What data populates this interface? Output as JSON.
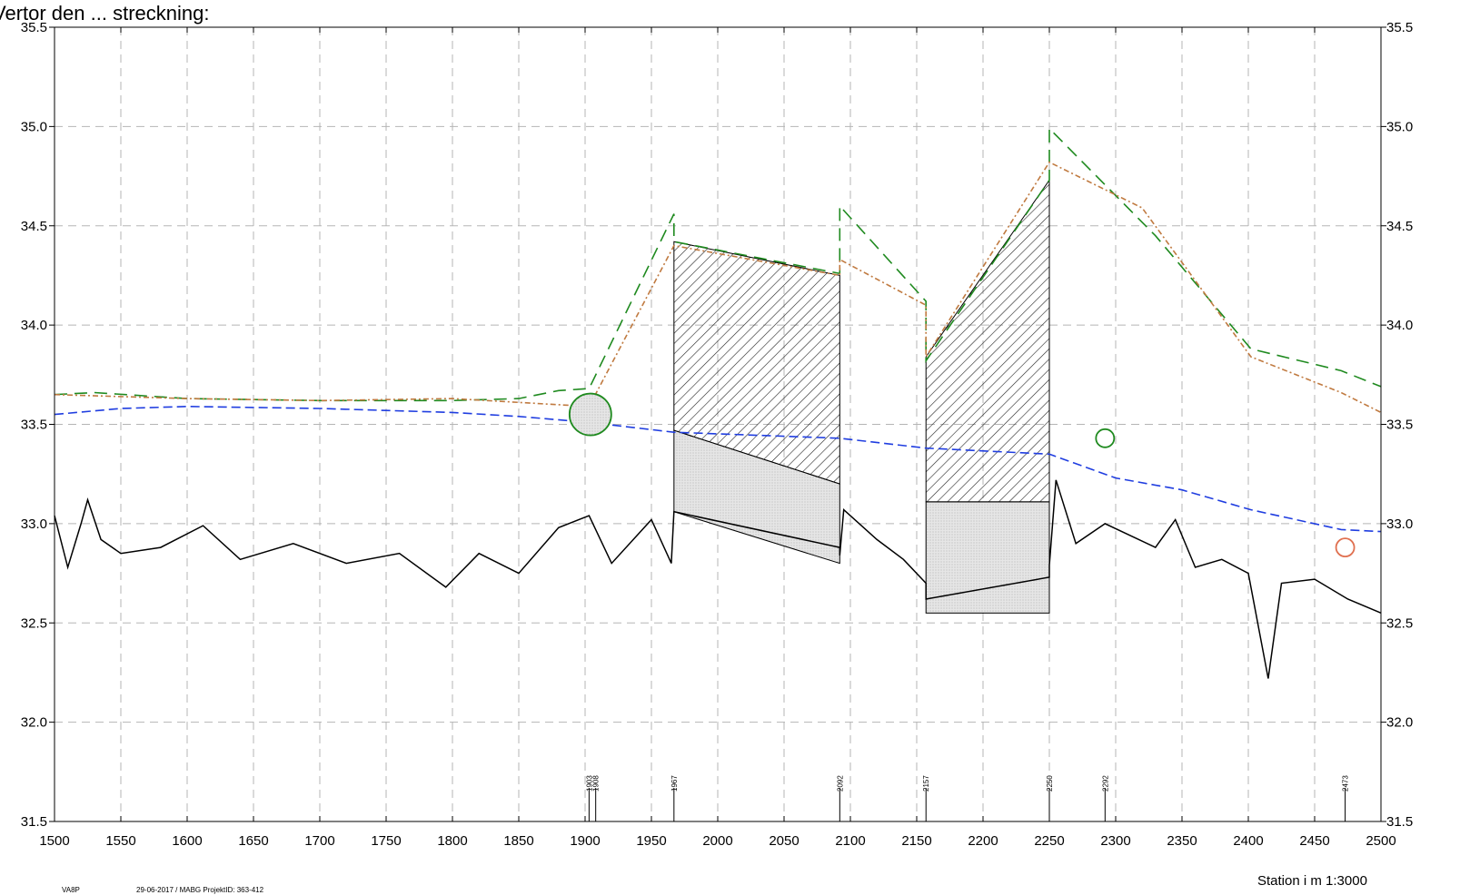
{
  "page": {
    "title_cut": "Vertor den ... streckning:"
  },
  "chart_data": {
    "type": "line",
    "title": "",
    "xlabel": "Station i m  1:3000",
    "ylabel": "",
    "xlim": [
      1500,
      2500
    ],
    "ylim": [
      31.5,
      35.5
    ],
    "x_ticks": [
      1500,
      1550,
      1600,
      1650,
      1700,
      1750,
      1800,
      1850,
      1900,
      1950,
      2000,
      2050,
      2100,
      2150,
      2200,
      2250,
      2300,
      2350,
      2400,
      2450,
      2500
    ],
    "y_ticks": [
      "31.5",
      "32.0",
      "32.5",
      "33.0",
      "33.5",
      "34.0",
      "34.5",
      "35.0",
      "35.5"
    ],
    "grid": true,
    "footer": {
      "left_code": "VA8P",
      "left_info": "29-06-2017 / MABG   ProjektID: 363-412"
    },
    "station_markers": [
      {
        "x": 1903,
        "label": "1903"
      },
      {
        "x": 1908,
        "label": "1908"
      },
      {
        "x": 1967,
        "label": "1967"
      },
      {
        "x": 2092,
        "label": "2092"
      },
      {
        "x": 2157,
        "label": "2157"
      },
      {
        "x": 2250,
        "label": "2250"
      },
      {
        "x": 2292,
        "label": "2292"
      },
      {
        "x": 2473,
        "label": "2473"
      }
    ],
    "series": [
      {
        "name": "",
        "color": "#1f8a1f",
        "style": "dashed-long",
        "points": [
          [
            1500,
            33.65
          ],
          [
            1530,
            33.66
          ],
          [
            1600,
            33.63
          ],
          [
            1700,
            33.62
          ],
          [
            1800,
            33.62
          ],
          [
            1850,
            33.63
          ],
          [
            1880,
            33.67
          ],
          [
            1903,
            33.68
          ],
          [
            1967,
            34.56
          ],
          [
            1967,
            34.42
          ],
          [
            2092,
            34.26
          ],
          [
            2092,
            34.6
          ],
          [
            2157,
            34.12
          ],
          [
            2157,
            33.82
          ],
          [
            2250,
            34.73
          ],
          [
            2250,
            34.99
          ],
          [
            2330,
            34.45
          ],
          [
            2402,
            33.88
          ],
          [
            2470,
            33.77
          ],
          [
            2500,
            33.69
          ]
        ]
      },
      {
        "name": "",
        "color": "#c07a40",
        "style": "dashdot",
        "points": [
          [
            1500,
            33.65
          ],
          [
            1600,
            33.63
          ],
          [
            1700,
            33.62
          ],
          [
            1800,
            33.63
          ],
          [
            1903,
            33.59
          ],
          [
            1967,
            34.4
          ],
          [
            2092,
            34.25
          ],
          [
            2092,
            34.33
          ],
          [
            2157,
            34.1
          ],
          [
            2157,
            33.84
          ],
          [
            2250,
            34.82
          ],
          [
            2320,
            34.59
          ],
          [
            2402,
            33.84
          ],
          [
            2470,
            33.66
          ],
          [
            2500,
            33.56
          ]
        ]
      },
      {
        "name": "",
        "color": "#1f3de0",
        "style": "dashed",
        "points": [
          [
            1500,
            33.55
          ],
          [
            1550,
            33.58
          ],
          [
            1600,
            33.59
          ],
          [
            1700,
            33.58
          ],
          [
            1800,
            33.56
          ],
          [
            1850,
            33.54
          ],
          [
            1903,
            33.51
          ],
          [
            1967,
            33.46
          ],
          [
            2050,
            33.44
          ],
          [
            2092,
            33.43
          ],
          [
            2157,
            33.38
          ],
          [
            2250,
            33.35
          ],
          [
            2300,
            33.23
          ],
          [
            2350,
            33.17
          ],
          [
            2402,
            33.07
          ],
          [
            2470,
            32.97
          ],
          [
            2500,
            32.96
          ]
        ]
      },
      {
        "name": "",
        "color": "#000000",
        "style": "solid",
        "points": [
          [
            1500,
            33.04
          ],
          [
            1510,
            32.78
          ],
          [
            1520,
            33.0
          ],
          [
            1525,
            33.12
          ],
          [
            1535,
            32.92
          ],
          [
            1550,
            32.85
          ],
          [
            1580,
            32.88
          ],
          [
            1612,
            32.99
          ],
          [
            1640,
            32.82
          ],
          [
            1680,
            32.9
          ],
          [
            1720,
            32.8
          ],
          [
            1760,
            32.85
          ],
          [
            1795,
            32.68
          ],
          [
            1820,
            32.85
          ],
          [
            1850,
            32.75
          ],
          [
            1880,
            32.98
          ],
          [
            1903,
            33.04
          ],
          [
            1920,
            32.8
          ],
          [
            1950,
            33.02
          ],
          [
            1965,
            32.8
          ],
          [
            1967,
            33.06
          ],
          [
            2092,
            32.88
          ],
          [
            2092,
            32.84
          ],
          [
            2095,
            33.07
          ],
          [
            2120,
            32.92
          ],
          [
            2140,
            32.82
          ],
          [
            2157,
            32.7
          ],
          [
            2157,
            32.62
          ],
          [
            2250,
            32.73
          ],
          [
            2250,
            32.79
          ],
          [
            2255,
            33.22
          ],
          [
            2270,
            32.9
          ],
          [
            2292,
            33.0
          ],
          [
            2330,
            32.88
          ],
          [
            2345,
            33.02
          ],
          [
            2360,
            32.78
          ],
          [
            2380,
            32.82
          ],
          [
            2400,
            32.75
          ],
          [
            2415,
            32.22
          ],
          [
            2425,
            32.7
          ],
          [
            2450,
            32.72
          ],
          [
            2475,
            32.62
          ],
          [
            2500,
            32.55
          ]
        ]
      }
    ],
    "hatched_areas": [
      {
        "x1": 1967,
        "x2": 2092,
        "top": [
          34.42,
          34.25
        ],
        "bottom": [
          33.47,
          33.2
        ]
      },
      {
        "x1": 2157,
        "x2": 2250,
        "top": [
          33.84,
          34.73
        ],
        "bottom": [
          33.11,
          33.11
        ]
      }
    ],
    "shaded_areas": [
      {
        "x1": 1967,
        "x2": 2092,
        "top": [
          33.47,
          33.2
        ],
        "bottom": [
          33.06,
          32.8
        ]
      },
      {
        "x1": 2157,
        "x2": 2250,
        "top": [
          33.11,
          33.11
        ],
        "bottom": [
          32.55,
          32.55
        ]
      }
    ],
    "circles": [
      {
        "x": 1904,
        "y": 33.55,
        "color": "#1f8a1f",
        "size": "large"
      },
      {
        "x": 2292,
        "y": 33.43,
        "color": "#1f8a1f",
        "size": "small"
      },
      {
        "x": 2473,
        "y": 32.88,
        "color": "#e07050",
        "size": "small"
      }
    ]
  }
}
